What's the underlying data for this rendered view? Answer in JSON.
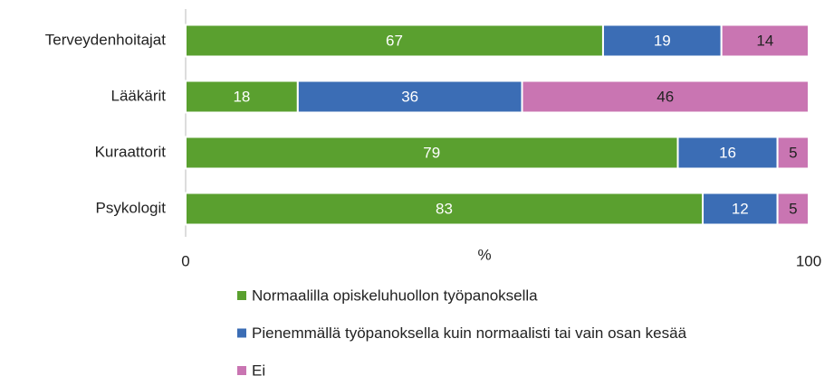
{
  "chart_data": {
    "type": "stacked_barh",
    "categories": [
      "Terveydenhoitajat",
      "Lääkärit",
      "Kuraattorit",
      "Psykologit"
    ],
    "series": [
      {
        "name": "Normaalilla opiskeluhuollon työpanoksella",
        "color": "#5aa02f",
        "label_color": "#ffffff",
        "values": [
          67,
          18,
          79,
          83
        ]
      },
      {
        "name": "Pienemmällä työpanoksella kuin normaalisti tai vain osan kesää",
        "color": "#3b6db5",
        "label_color": "#ffffff",
        "values": [
          19,
          36,
          16,
          12
        ]
      },
      {
        "name": "Ei",
        "color": "#c975b2",
        "label_color": "#222222",
        "values": [
          14,
          46,
          5,
          5
        ]
      }
    ],
    "xlabel": "%",
    "xlim": [
      0,
      100
    ],
    "xticks": [
      0,
      100
    ],
    "legend": "bottom"
  }
}
